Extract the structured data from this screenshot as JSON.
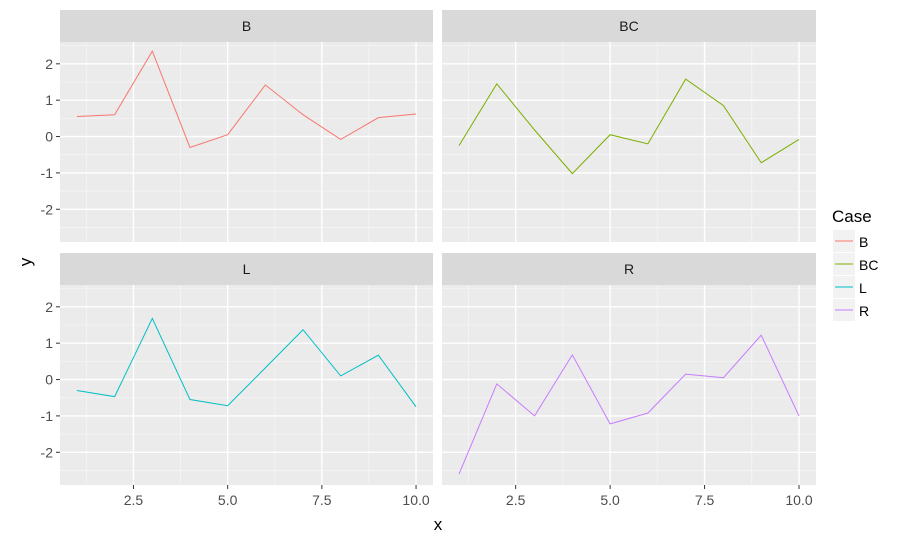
{
  "chart_data": {
    "type": "line",
    "facets": [
      "B",
      "BC",
      "L",
      "R"
    ],
    "x": [
      1,
      2,
      3,
      4,
      5,
      6,
      7,
      8,
      9,
      10
    ],
    "series": [
      {
        "name": "B",
        "color": "#F8766D",
        "values": [
          0.55,
          0.6,
          2.35,
          -0.3,
          0.05,
          1.42,
          0.6,
          -0.08,
          0.52,
          0.62
        ]
      },
      {
        "name": "BC",
        "color": "#7CAE00",
        "values": [
          -0.25,
          1.45,
          0.18,
          -1.02,
          0.05,
          -0.2,
          1.58,
          0.85,
          -0.72,
          -0.08
        ]
      },
      {
        "name": "L",
        "color": "#00BFC4",
        "values": [
          -0.3,
          -0.47,
          1.68,
          -0.55,
          -0.72,
          0.32,
          1.37,
          0.1,
          0.67,
          -0.75
        ]
      },
      {
        "name": "R",
        "color": "#C77CFF",
        "values": [
          -2.6,
          -0.12,
          -1.0,
          0.68,
          -1.22,
          -0.92,
          0.15,
          0.05,
          1.22,
          -1.0
        ]
      }
    ],
    "xlabel": "x",
    "ylabel": "y",
    "xticks": [
      "2.5",
      "5.0",
      "7.5",
      "10.0"
    ],
    "xtick_values": [
      2.5,
      5,
      7.5,
      10
    ],
    "yticks": [
      "2",
      "1",
      "0",
      "-1",
      "-2"
    ],
    "ytick_values": [
      2,
      1,
      0,
      -1,
      -2
    ],
    "xlim": [
      0.55,
      10.45
    ],
    "ylim": [
      -2.9,
      2.6
    ],
    "legend": {
      "title": "Case",
      "position": "right",
      "entries": [
        "B",
        "BC",
        "L",
        "R"
      ]
    },
    "grid": true
  }
}
